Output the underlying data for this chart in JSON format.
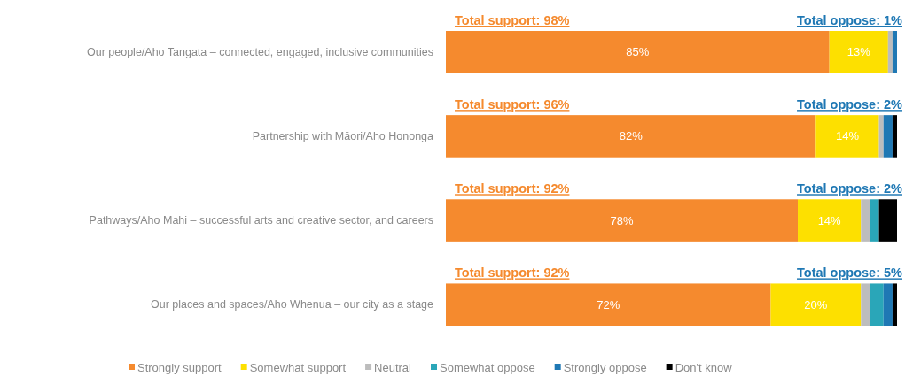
{
  "chart_data": {
    "type": "bar",
    "orientation": "horizontal",
    "stacked": true,
    "legend": "bottom",
    "tick_labels": "y",
    "xlim": [
      0,
      100
    ],
    "categories": [
      "Our people/Aho Tangata – connected, engaged, inclusive  communities",
      "Partnership with Māori/Aho Hononga",
      "Pathways/Aho Mahi – successful arts and creative sector, and careers",
      "Our places and spaces/Aho Whenua – our city as a stage"
    ],
    "series": [
      {
        "name": "Strongly support",
        "color": "#f58a2e",
        "values": [
          85,
          82,
          78,
          72
        ],
        "value_labels": [
          "85%",
          "82%",
          "78%",
          "72%"
        ]
      },
      {
        "name": "Somewhat support",
        "color": "#fde000",
        "values": [
          13,
          14,
          14,
          20
        ],
        "value_labels": [
          "13%",
          "14%",
          "14%",
          "20%"
        ]
      },
      {
        "name": "Neutral",
        "color": "#bdbdbd",
        "values": [
          1,
          1,
          2,
          2
        ]
      },
      {
        "name": "Somewhat oppose",
        "color": "#2aa6b8",
        "values": [
          0,
          0,
          2,
          3
        ]
      },
      {
        "name": "Strongly oppose",
        "color": "#1f78b4",
        "values": [
          1,
          2,
          0,
          2
        ]
      },
      {
        "name": "Don't know",
        "color": "#000000",
        "values": [
          0,
          1,
          4,
          1
        ]
      }
    ],
    "annotations": [
      "Total support: 98%",
      "Total oppose: 1%",
      "Total support: 96%",
      "Total oppose: 2%",
      "Total support: 92%",
      "Total oppose: 2%",
      "Total support: 92%",
      "Total oppose: 5%"
    ]
  }
}
